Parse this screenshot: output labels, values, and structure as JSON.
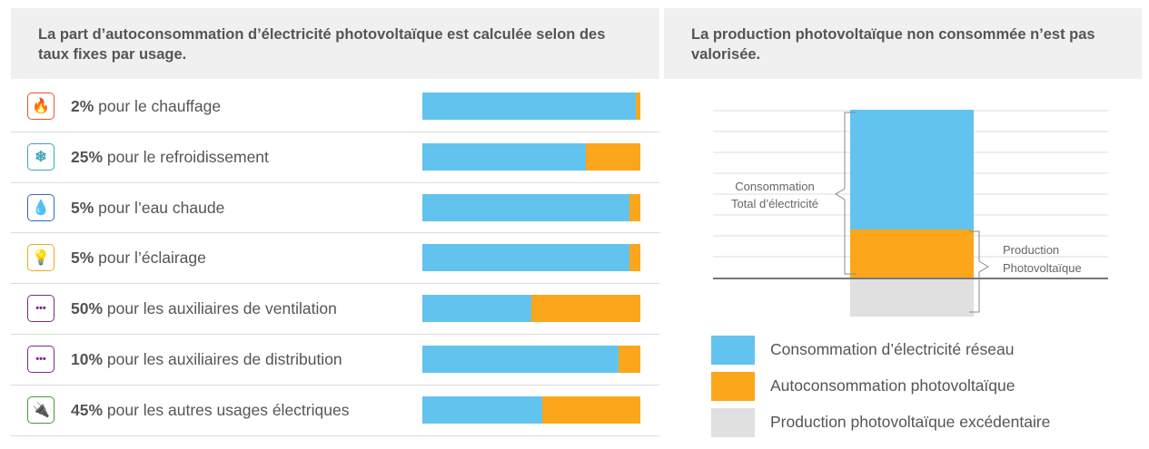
{
  "left_panel": {
    "title": "La part d’autoconsommation d’électricité photovoltaïque est calculée selon des taux fixes par usage."
  },
  "right_panel": {
    "title": "La production photovoltaïque non consommée n’est pas valorisée."
  },
  "colors": {
    "grid_blue": "#62c3ef",
    "self_consumption_orange": "#fca61b",
    "excess_grey": "#e0e0e0"
  },
  "usages": [
    {
      "pct": "2%",
      "label": "pour le chauffage",
      "value": 2,
      "icon": "flame-icon",
      "icon_glyph": "🔥",
      "icon_color": "#e8532b"
    },
    {
      "pct": "25%",
      "label": "pour le refroidissement",
      "value": 25,
      "icon": "snowflake-icon",
      "icon_glyph": "❄",
      "icon_color": "#3aa6b9"
    },
    {
      "pct": "5%",
      "label": "pour l’eau chaude",
      "value": 5,
      "icon": "water-drop-icon",
      "icon_glyph": "💧",
      "icon_color": "#2f6db5"
    },
    {
      "pct": "5%",
      "label": "pour l’éclairage",
      "value": 5,
      "icon": "light-bulb-icon",
      "icon_glyph": "💡",
      "icon_color": "#f2a81d"
    },
    {
      "pct": "50%",
      "label": "pour les auxiliaires de ventilation",
      "value": 50,
      "icon": "dots-icon",
      "icon_glyph": "•••",
      "icon_color": "#7b2a86"
    },
    {
      "pct": "10%",
      "label": "pour les auxiliaires de distribution",
      "value": 10,
      "icon": "dots-icon",
      "icon_glyph": "•••",
      "icon_color": "#7b2a86"
    },
    {
      "pct": "45%",
      "label": "pour les autres usages électriques",
      "value": 45,
      "icon": "plug-icon",
      "icon_glyph": "🔌",
      "icon_color": "#4a9a3a"
    }
  ],
  "diagram": {
    "consumption_label_line1": "Consommation",
    "consumption_label_line2": "Total d’électricité",
    "production_label_line1": "Production",
    "production_label_line2": "Photovoltaïque"
  },
  "legend": [
    {
      "label": "Consommation d’électricité réseau",
      "color": "#62c3ef"
    },
    {
      "label": "Autoconsommation photovoltaïque",
      "color": "#fca61b"
    },
    {
      "label": "Production photovoltaïque excédentaire",
      "color": "#e0e0e0"
    }
  ]
}
